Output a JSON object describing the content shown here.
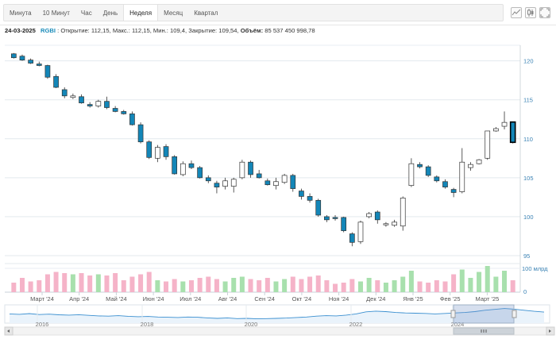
{
  "tabs": [
    {
      "label": "Минута"
    },
    {
      "label": "10 Минут"
    },
    {
      "label": "Час"
    },
    {
      "label": "День"
    },
    {
      "label": "Неделя",
      "active": true
    },
    {
      "label": "Месяц"
    },
    {
      "label": "Квартал"
    }
  ],
  "toolbar": {
    "icons": [
      "line-chart-icon",
      "candlestick-chart-icon",
      "fullscreen-icon"
    ]
  },
  "info": {
    "date": "24-03-2025",
    "ticker": "RGBI",
    "open_label": "Открытие:",
    "open": "112,15",
    "high_label": "Макс.:",
    "high": "112,15",
    "low_label": "Мин.:",
    "low": "109,4",
    "close_label": "Закрытие:",
    "close": "109,54",
    "volume_label": "Объём:",
    "volume": "85 537 450 998,78"
  },
  "colors": {
    "up": "#ffffff",
    "down": "#1386b8",
    "vol_up": "#a8e0ad",
    "vol_down": "#f5b3c8",
    "navigator": "#3a8fd0"
  },
  "chart_data": {
    "type": "candlestick",
    "ylim": [
      95,
      122
    ],
    "y_ticks": [
      95,
      100,
      105,
      110,
      115,
      120
    ],
    "x_labels": [
      "Март '24",
      "Апр '24",
      "Май '24",
      "Июн '24",
      "Июл '24",
      "Авг '24",
      "Сен '24",
      "Окт '24",
      "Ноя '24",
      "Дек '24",
      "Янв '25",
      "Фев '25",
      "Март '25"
    ],
    "volume_label": "100 млрд",
    "volume_ticks": [
      "100 млрд",
      "0"
    ],
    "navigator_labels": [
      "2016",
      "2018",
      "2020",
      "2022",
      "2024"
    ],
    "candles": [
      {
        "o": 120.9,
        "h": 121.0,
        "l": 120.3,
        "c": 120.4,
        "v": 40
      },
      {
        "o": 120.6,
        "h": 120.8,
        "l": 120.0,
        "c": 120.1,
        "v": 60
      },
      {
        "o": 120.1,
        "h": 120.3,
        "l": 119.6,
        "c": 119.7,
        "v": 45
      },
      {
        "o": 119.6,
        "h": 119.9,
        "l": 119.3,
        "c": 119.4,
        "v": 50
      },
      {
        "o": 119.4,
        "h": 119.5,
        "l": 117.7,
        "c": 117.9,
        "v": 75
      },
      {
        "o": 118.0,
        "h": 118.3,
        "l": 116.5,
        "c": 116.6,
        "v": 85
      },
      {
        "o": 116.3,
        "h": 116.6,
        "l": 115.2,
        "c": 115.5,
        "v": 80
      },
      {
        "o": 115.3,
        "h": 115.8,
        "l": 115.1,
        "c": 115.5,
        "v": 75
      },
      {
        "o": 115.4,
        "h": 115.7,
        "l": 114.5,
        "c": 114.6,
        "v": 80
      },
      {
        "o": 114.4,
        "h": 114.7,
        "l": 114.0,
        "c": 114.2,
        "v": 70
      },
      {
        "o": 114.2,
        "h": 115.0,
        "l": 114.0,
        "c": 114.8,
        "v": 75
      },
      {
        "o": 114.8,
        "h": 115.4,
        "l": 113.8,
        "c": 114.0,
        "v": 70
      },
      {
        "o": 113.9,
        "h": 114.2,
        "l": 113.4,
        "c": 113.5,
        "v": 80
      },
      {
        "o": 113.5,
        "h": 113.7,
        "l": 113.1,
        "c": 113.2,
        "v": 50
      },
      {
        "o": 113.2,
        "h": 113.5,
        "l": 111.7,
        "c": 111.8,
        "v": 65
      },
      {
        "o": 111.8,
        "h": 112.1,
        "l": 109.4,
        "c": 109.6,
        "v": 75
      },
      {
        "o": 109.6,
        "h": 109.8,
        "l": 107.4,
        "c": 107.6,
        "v": 85
      },
      {
        "o": 107.5,
        "h": 109.2,
        "l": 107.0,
        "c": 108.9,
        "v": 50
      },
      {
        "o": 109.0,
        "h": 109.3,
        "l": 107.3,
        "c": 107.7,
        "v": 45
      },
      {
        "o": 107.7,
        "h": 107.9,
        "l": 105.4,
        "c": 105.5,
        "v": 55
      },
      {
        "o": 105.4,
        "h": 107.1,
        "l": 105.2,
        "c": 106.8,
        "v": 45
      },
      {
        "o": 106.8,
        "h": 107.2,
        "l": 106.1,
        "c": 106.3,
        "v": 50
      },
      {
        "o": 106.3,
        "h": 106.5,
        "l": 104.9,
        "c": 105.0,
        "v": 60
      },
      {
        "o": 105.0,
        "h": 105.3,
        "l": 104.3,
        "c": 104.6,
        "v": 65
      },
      {
        "o": 104.3,
        "h": 104.6,
        "l": 103.0,
        "c": 103.8,
        "v": 55
      },
      {
        "o": 103.9,
        "h": 105.0,
        "l": 103.5,
        "c": 104.6,
        "v": 45
      },
      {
        "o": 103.9,
        "h": 105.0,
        "l": 103.1,
        "c": 104.8,
        "v": 60
      },
      {
        "o": 105.0,
        "h": 107.3,
        "l": 104.8,
        "c": 107.0,
        "v": 65
      },
      {
        "o": 107.0,
        "h": 107.2,
        "l": 105.0,
        "c": 105.4,
        "v": 55
      },
      {
        "o": 105.5,
        "h": 106.0,
        "l": 104.9,
        "c": 105.0,
        "v": 50
      },
      {
        "o": 104.6,
        "h": 104.9,
        "l": 104.0,
        "c": 104.1,
        "v": 60
      },
      {
        "o": 104.0,
        "h": 105.0,
        "l": 103.5,
        "c": 104.5,
        "v": 45
      },
      {
        "o": 104.4,
        "h": 105.5,
        "l": 104.2,
        "c": 105.3,
        "v": 55
      },
      {
        "o": 105.3,
        "h": 105.5,
        "l": 103.2,
        "c": 103.6,
        "v": 65
      },
      {
        "o": 103.3,
        "h": 103.6,
        "l": 102.2,
        "c": 102.6,
        "v": 55
      },
      {
        "o": 102.6,
        "h": 103.0,
        "l": 101.8,
        "c": 102.1,
        "v": 65
      },
      {
        "o": 102.1,
        "h": 102.3,
        "l": 100.0,
        "c": 100.2,
        "v": 70
      },
      {
        "o": 100.0,
        "h": 100.2,
        "l": 99.3,
        "c": 99.6,
        "v": 50
      },
      {
        "o": 99.9,
        "h": 100.2,
        "l": 99.5,
        "c": 99.8,
        "v": 35
      },
      {
        "o": 99.9,
        "h": 100.0,
        "l": 98.0,
        "c": 98.2,
        "v": 40
      },
      {
        "o": 97.8,
        "h": 98.0,
        "l": 96.2,
        "c": 96.7,
        "v": 55
      },
      {
        "o": 96.8,
        "h": 99.5,
        "l": 96.5,
        "c": 99.3,
        "v": 45
      },
      {
        "o": 100.0,
        "h": 100.6,
        "l": 99.8,
        "c": 100.4,
        "v": 60
      },
      {
        "o": 100.6,
        "h": 100.8,
        "l": 99.1,
        "c": 99.6,
        "v": 50
      },
      {
        "o": 99.0,
        "h": 99.3,
        "l": 98.7,
        "c": 99.1,
        "v": 40
      },
      {
        "o": 98.9,
        "h": 99.6,
        "l": 98.7,
        "c": 99.3,
        "v": 50
      },
      {
        "o": 98.8,
        "h": 102.6,
        "l": 98.2,
        "c": 102.4,
        "v": 65
      },
      {
        "o": 104.0,
        "h": 107.5,
        "l": 103.8,
        "c": 106.8,
        "v": 90
      },
      {
        "o": 106.7,
        "h": 107.0,
        "l": 106.2,
        "c": 106.4,
        "v": 45
      },
      {
        "o": 106.4,
        "h": 106.6,
        "l": 105.1,
        "c": 105.3,
        "v": 40
      },
      {
        "o": 105.1,
        "h": 105.3,
        "l": 104.4,
        "c": 104.6,
        "v": 50
      },
      {
        "o": 104.5,
        "h": 104.8,
        "l": 103.6,
        "c": 103.8,
        "v": 45
      },
      {
        "o": 103.5,
        "h": 103.7,
        "l": 102.5,
        "c": 103.1,
        "v": 75
      },
      {
        "o": 103.2,
        "h": 108.8,
        "l": 103.0,
        "c": 107.0,
        "v": 95
      },
      {
        "o": 106.3,
        "h": 107.0,
        "l": 105.9,
        "c": 106.7,
        "v": 60
      },
      {
        "o": 106.8,
        "h": 107.4,
        "l": 106.7,
        "c": 107.3,
        "v": 85
      },
      {
        "o": 107.5,
        "h": 111.0,
        "l": 107.3,
        "c": 111.0,
        "v": 110
      },
      {
        "o": 111.0,
        "h": 111.5,
        "l": 110.9,
        "c": 111.3,
        "v": 65
      },
      {
        "o": 111.6,
        "h": 113.5,
        "l": 111.2,
        "c": 112.1,
        "v": 90
      },
      {
        "o": 112.15,
        "h": 112.15,
        "l": 109.4,
        "c": 109.54,
        "v": 50
      }
    ],
    "navigator_line": [
      0.45,
      0.42,
      0.47,
      0.4,
      0.43,
      0.38,
      0.36,
      0.39,
      0.34,
      0.3,
      0.28,
      0.32,
      0.27,
      0.24,
      0.26,
      0.22,
      0.2,
      0.18,
      0.22,
      0.2,
      0.15,
      0.12,
      0.15,
      0.1,
      0.12,
      0.08,
      0.1,
      0.12,
      0.14,
      0.18,
      0.22,
      0.28,
      0.32,
      0.3,
      0.36,
      0.45,
      0.6,
      0.65,
      0.62,
      0.55,
      0.52,
      0.5,
      0.48,
      0.45,
      0.48,
      0.52,
      0.55,
      0.62,
      0.72,
      0.78,
      0.85,
      0.8,
      0.72,
      0.64,
      0.58
    ]
  }
}
